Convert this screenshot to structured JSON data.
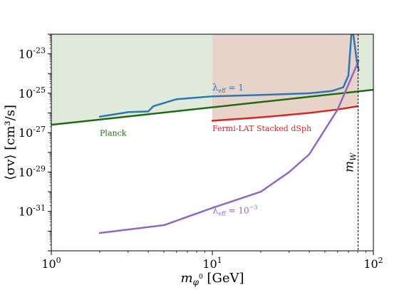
{
  "chart_data": {
    "type": "line",
    "xscale": "log",
    "yscale": "log",
    "xlim": [
      1,
      100
    ],
    "ylim": [
      1e-33,
      1e-22
    ],
    "xlabel_main": "m",
    "xlabel_sub": "φ",
    "xlabel_sup": "0",
    "xlabel_unit": "[GeV]",
    "ylabel": "⟨σv⟩ [cm³/s]",
    "x_ticks": [
      {
        "value": 1,
        "base": "10",
        "exp": "0"
      },
      {
        "value": 10,
        "base": "10",
        "exp": "1"
      },
      {
        "value": 100,
        "base": "10",
        "exp": "2"
      }
    ],
    "y_ticks": [
      {
        "value": 1e-31,
        "base": "10",
        "exp": "-31"
      },
      {
        "value": 1e-29,
        "base": "10",
        "exp": "-29"
      },
      {
        "value": 1e-27,
        "base": "10",
        "exp": "-27"
      },
      {
        "value": 1e-25,
        "base": "10",
        "exp": "-25"
      },
      {
        "value": 1e-23,
        "base": "10",
        "exp": "-23"
      }
    ],
    "regions": [
      {
        "name": "planck-excluded",
        "color": "#dfeadb",
        "x": [
          1,
          100
        ],
        "lower": [
          2.5e-27,
          1.5e-25
        ]
      },
      {
        "name": "fermi-excluded",
        "color": "#e8d3cb",
        "x": [
          10,
          20,
          40,
          60,
          80
        ],
        "lower": [
          4e-27,
          6e-27,
          1e-26,
          1.5e-26,
          2.2e-26
        ]
      }
    ],
    "series": [
      {
        "name": "Planck",
        "color": "#1f6b12",
        "x": [
          1,
          100
        ],
        "y": [
          2.5e-27,
          1.5e-25
        ]
      },
      {
        "name": "Fermi-LAT Stacked dSph",
        "color": "#d62728",
        "x": [
          10,
          20,
          40,
          60,
          80
        ],
        "y": [
          4e-27,
          6e-27,
          1e-26,
          1.5e-26,
          2.2e-26
        ]
      },
      {
        "name": "λ_eff = 1",
        "color": "#2a77b4",
        "x": [
          2,
          3,
          4,
          4.3,
          6,
          10,
          20,
          40,
          55,
          65,
          70,
          73,
          75,
          77,
          79,
          81
        ],
        "y": [
          6.5e-27,
          1.1e-26,
          1.2e-26,
          2.2e-26,
          5e-26,
          7e-26,
          8.2e-26,
          1e-25,
          1.3e-25,
          2e-25,
          8e-25,
          1e-22,
          1e-22,
          2e-23,
          4e-24,
          1.5e-24
        ]
      },
      {
        "name": "λ_eff = 10⁻³",
        "color": "#9467bd",
        "x": [
          2,
          5,
          10,
          20,
          30,
          40,
          60,
          81
        ],
        "y": [
          8e-33,
          2e-32,
          1.5e-31,
          1e-30,
          1e-29,
          8e-29,
          1.5e-26,
          4.5e-24
        ]
      }
    ],
    "vline": {
      "x": 80.4,
      "label_base": "m",
      "label_sub": "W"
    },
    "annotations": [
      {
        "name": "lambda-one",
        "base": "λ",
        "sub": "eff",
        "rest": " = 1",
        "color": "#2a77b4",
        "x": 10,
        "y": 1.4e-25
      },
      {
        "name": "lambda-small",
        "base": "λ",
        "sub": "eff",
        "rest": " = 10",
        "sup": "−3",
        "color": "#9467bd",
        "x": 10,
        "y": 8e-32
      },
      {
        "name": "planck",
        "text": "Planck",
        "color": "#1f6b12",
        "x": 2.0,
        "y": 7e-28
      },
      {
        "name": "fermi",
        "text": "Fermi-LAT Stacked dSph",
        "color": "#d62728",
        "x": 10,
        "y": 1.2e-27
      }
    ]
  }
}
